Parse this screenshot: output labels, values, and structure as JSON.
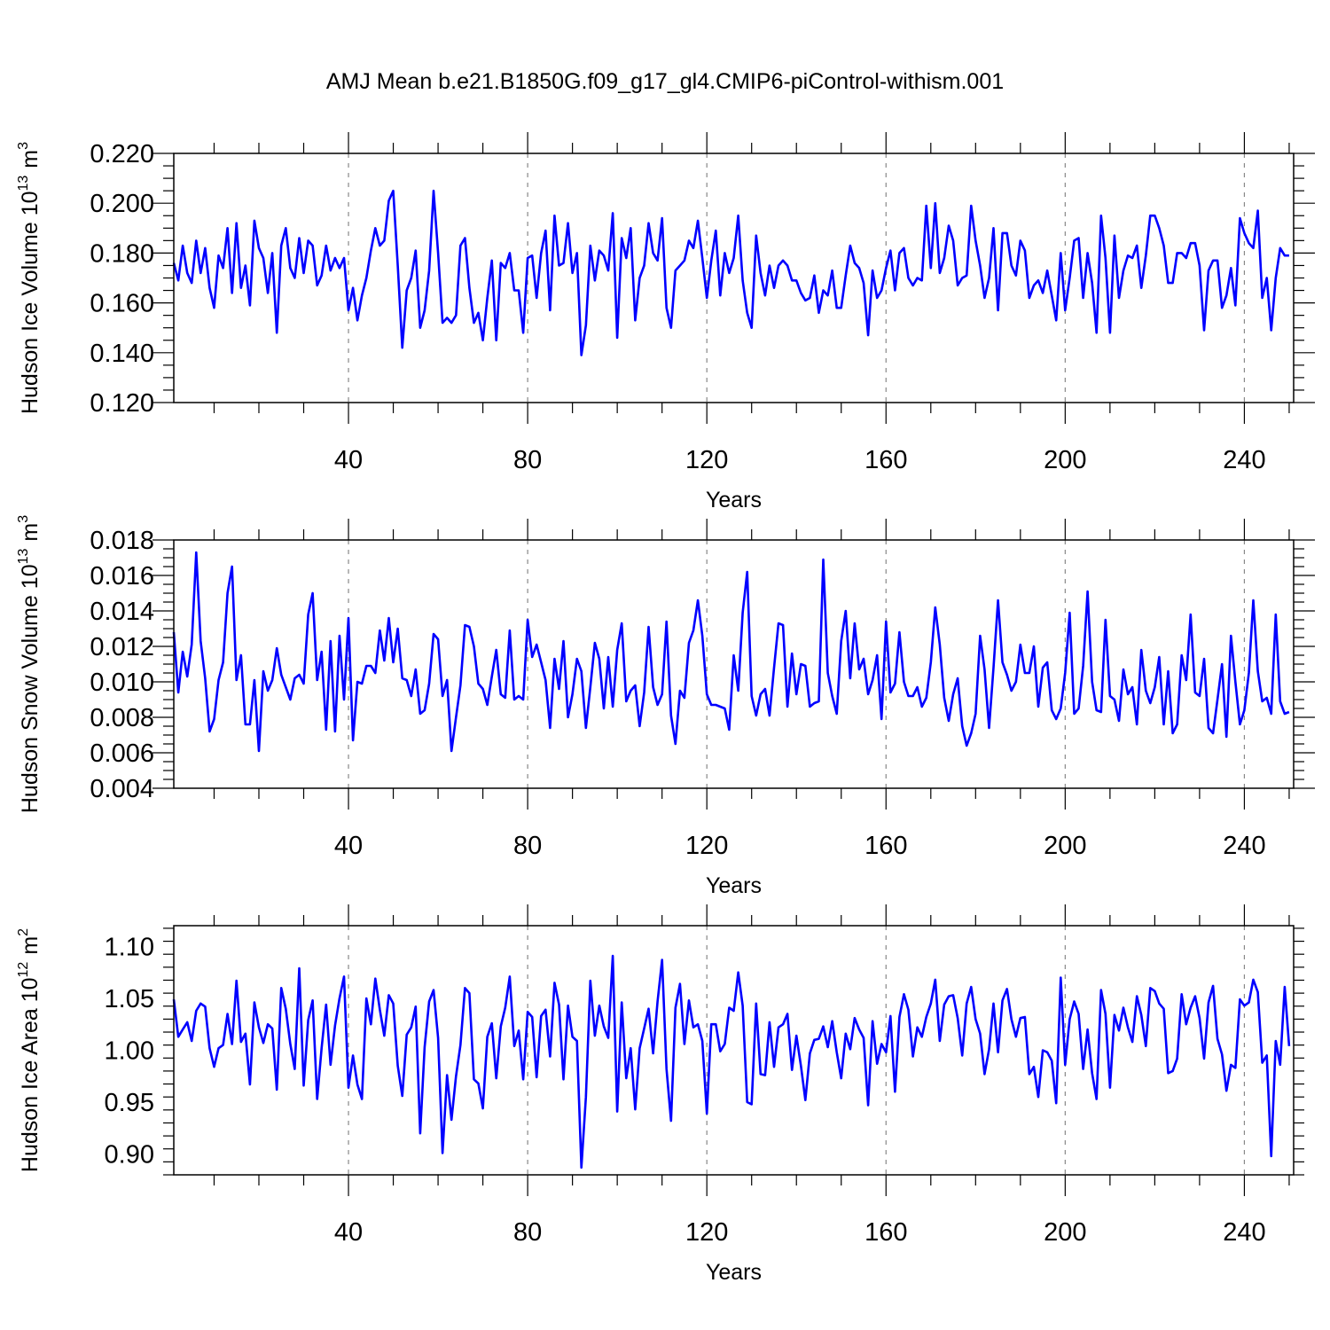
{
  "title": "AMJ Mean b.e21.B1850G.f09_g17_gl4.CMIP6-piControl-withism.001",
  "colors": {
    "series": "#0000ff",
    "axis": "#000000",
    "grid": "#888888"
  },
  "chart_data": [
    {
      "type": "line",
      "name": "ice-volume",
      "ylabel_main": "Hudson Ice Volume 10",
      "ylabel_exp": "13",
      "ylabel_unit": "m",
      "ylabel_unit_exp": "3",
      "xlabel": "Years",
      "xlim": [
        1,
        251
      ],
      "ylim": [
        0.12,
        0.22
      ],
      "yticks": [
        "0.120",
        "0.140",
        "0.160",
        "0.180",
        "0.200",
        "0.220"
      ],
      "ytick_values": [
        0.12,
        0.14,
        0.16,
        0.18,
        0.2,
        0.22
      ],
      "xticks": [
        "40",
        "80",
        "120",
        "160",
        "200",
        "240"
      ],
      "xtick_values": [
        40,
        80,
        120,
        160,
        200,
        240
      ],
      "x_start": 1,
      "values": [
        0.176,
        0.169,
        0.183,
        0.172,
        0.168,
        0.185,
        0.172,
        0.182,
        0.166,
        0.158,
        0.179,
        0.174,
        0.19,
        0.164,
        0.192,
        0.166,
        0.175,
        0.159,
        0.193,
        0.182,
        0.178,
        0.164,
        0.18,
        0.148,
        0.183,
        0.19,
        0.174,
        0.17,
        0.186,
        0.172,
        0.185,
        0.183,
        0.167,
        0.171,
        0.183,
        0.173,
        0.178,
        0.174,
        0.178,
        0.157,
        0.166,
        0.153,
        0.163,
        0.17,
        0.181,
        0.19,
        0.183,
        0.185,
        0.201,
        0.205,
        0.175,
        0.142,
        0.165,
        0.17,
        0.181,
        0.15,
        0.157,
        0.173,
        0.205,
        0.18,
        0.152,
        0.154,
        0.152,
        0.155,
        0.183,
        0.186,
        0.166,
        0.152,
        0.156,
        0.145,
        0.162,
        0.177,
        0.145,
        0.176,
        0.174,
        0.18,
        0.165,
        0.165,
        0.148,
        0.178,
        0.179,
        0.162,
        0.18,
        0.189,
        0.157,
        0.195,
        0.175,
        0.176,
        0.192,
        0.172,
        0.18,
        0.139,
        0.151,
        0.183,
        0.169,
        0.181,
        0.179,
        0.173,
        0.196,
        0.146,
        0.186,
        0.178,
        0.19,
        0.153,
        0.17,
        0.175,
        0.192,
        0.18,
        0.177,
        0.194,
        0.158,
        0.15,
        0.173,
        0.175,
        0.177,
        0.185,
        0.182,
        0.193,
        0.178,
        0.162,
        0.177,
        0.189,
        0.163,
        0.18,
        0.172,
        0.178,
        0.195,
        0.169,
        0.156,
        0.15,
        0.187,
        0.172,
        0.163,
        0.175,
        0.166,
        0.175,
        0.177,
        0.175,
        0.169,
        0.169,
        0.164,
        0.161,
        0.162,
        0.171,
        0.156,
        0.165,
        0.163,
        0.173,
        0.158,
        0.158,
        0.171,
        0.183,
        0.176,
        0.174,
        0.168,
        0.147,
        0.173,
        0.162,
        0.165,
        0.174,
        0.181,
        0.165,
        0.18,
        0.182,
        0.17,
        0.167,
        0.17,
        0.169,
        0.199,
        0.174,
        0.2,
        0.172,
        0.178,
        0.191,
        0.185,
        0.167,
        0.17,
        0.171,
        0.199,
        0.185,
        0.175,
        0.162,
        0.17,
        0.19,
        0.157,
        0.188,
        0.188,
        0.175,
        0.171,
        0.185,
        0.181,
        0.162,
        0.167,
        0.169,
        0.164,
        0.173,
        0.163,
        0.153,
        0.18,
        0.157,
        0.17,
        0.185,
        0.186,
        0.162,
        0.18,
        0.168,
        0.148,
        0.195,
        0.178,
        0.148,
        0.187,
        0.162,
        0.173,
        0.179,
        0.178,
        0.183,
        0.166,
        0.179,
        0.195,
        0.195,
        0.19,
        0.183,
        0.168,
        0.168,
        0.18,
        0.18,
        0.178,
        0.184,
        0.184,
        0.175,
        0.149,
        0.173,
        0.177,
        0.177,
        0.158,
        0.163,
        0.174,
        0.159,
        0.194,
        0.188,
        0.184,
        0.182,
        0.197,
        0.162,
        0.17,
        0.149,
        0.17,
        0.182,
        0.179,
        0.179
      ]
    },
    {
      "type": "line",
      "name": "snow-volume",
      "ylabel_main": "Hudson Snow Volume 10",
      "ylabel_exp": "13",
      "ylabel_unit": "m",
      "ylabel_unit_exp": "3",
      "xlabel": "Years",
      "xlim": [
        1,
        251
      ],
      "ylim": [
        0.004,
        0.018
      ],
      "yticks": [
        "0.004",
        "0.006",
        "0.008",
        "0.010",
        "0.012",
        "0.014",
        "0.016",
        "0.018"
      ],
      "ytick_values": [
        0.004,
        0.006,
        0.008,
        0.01,
        0.012,
        0.014,
        0.016,
        0.018
      ],
      "xticks": [
        "40",
        "80",
        "120",
        "160",
        "200",
        "240"
      ],
      "xtick_values": [
        40,
        80,
        120,
        160,
        200,
        240
      ],
      "x_start": 1,
      "values": [
        0.0128,
        0.0094,
        0.0117,
        0.0103,
        0.0121,
        0.0173,
        0.0123,
        0.0102,
        0.0072,
        0.0079,
        0.0101,
        0.0111,
        0.015,
        0.0165,
        0.0101,
        0.0115,
        0.0076,
        0.0076,
        0.0101,
        0.0061,
        0.0106,
        0.0095,
        0.0101,
        0.0119,
        0.0104,
        0.0097,
        0.009,
        0.0102,
        0.0104,
        0.0099,
        0.0138,
        0.015,
        0.0101,
        0.0117,
        0.0073,
        0.0123,
        0.0072,
        0.0126,
        0.009,
        0.0136,
        0.0067,
        0.01,
        0.0099,
        0.0109,
        0.0109,
        0.0105,
        0.0129,
        0.0112,
        0.0136,
        0.0111,
        0.013,
        0.0102,
        0.0101,
        0.0092,
        0.0107,
        0.0082,
        0.0084,
        0.0099,
        0.0127,
        0.0124,
        0.0092,
        0.0101,
        0.0061,
        0.008,
        0.0098,
        0.0132,
        0.0131,
        0.012,
        0.0099,
        0.0096,
        0.0087,
        0.0103,
        0.0118,
        0.0093,
        0.0091,
        0.0129,
        0.009,
        0.0092,
        0.009,
        0.0135,
        0.0114,
        0.0121,
        0.0111,
        0.0101,
        0.0074,
        0.0113,
        0.0096,
        0.0123,
        0.008,
        0.0093,
        0.0113,
        0.0106,
        0.0074,
        0.0097,
        0.0122,
        0.0113,
        0.0085,
        0.0114,
        0.0086,
        0.0118,
        0.0133,
        0.0089,
        0.0095,
        0.0098,
        0.0075,
        0.0094,
        0.0131,
        0.0097,
        0.0087,
        0.0093,
        0.0134,
        0.0081,
        0.0065,
        0.0095,
        0.0091,
        0.0122,
        0.0129,
        0.0146,
        0.0126,
        0.0093,
        0.0087,
        0.0087,
        0.0086,
        0.0085,
        0.0073,
        0.0115,
        0.0095,
        0.0139,
        0.0162,
        0.0092,
        0.0081,
        0.0093,
        0.0096,
        0.0081,
        0.0108,
        0.0133,
        0.0132,
        0.0086,
        0.0116,
        0.0093,
        0.011,
        0.0109,
        0.0086,
        0.0088,
        0.0089,
        0.0169,
        0.0105,
        0.0092,
        0.0082,
        0.0123,
        0.014,
        0.0102,
        0.0133,
        0.0107,
        0.0113,
        0.0093,
        0.0101,
        0.0115,
        0.0079,
        0.0134,
        0.0094,
        0.0099,
        0.0128,
        0.01,
        0.0092,
        0.0092,
        0.0097,
        0.0086,
        0.0091,
        0.0111,
        0.0142,
        0.0121,
        0.0091,
        0.0078,
        0.0093,
        0.0102,
        0.0075,
        0.0064,
        0.0071,
        0.0082,
        0.0126,
        0.0107,
        0.0074,
        0.0108,
        0.0146,
        0.0111,
        0.0104,
        0.0095,
        0.01,
        0.0121,
        0.0105,
        0.0105,
        0.012,
        0.0086,
        0.0108,
        0.0111,
        0.0084,
        0.0079,
        0.0085,
        0.0105,
        0.0139,
        0.0082,
        0.0085,
        0.0109,
        0.0151,
        0.01,
        0.0084,
        0.0083,
        0.0135,
        0.0092,
        0.009,
        0.0078,
        0.0107,
        0.0093,
        0.0097,
        0.0076,
        0.0118,
        0.0095,
        0.0088,
        0.0097,
        0.0114,
        0.0076,
        0.0106,
        0.0071,
        0.0076,
        0.0115,
        0.0101,
        0.0138,
        0.0094,
        0.0092,
        0.0113,
        0.0074,
        0.0071,
        0.009,
        0.011,
        0.0069,
        0.0126,
        0.01,
        0.0076,
        0.0084,
        0.0105,
        0.0146,
        0.0106,
        0.0089,
        0.0091,
        0.0082,
        0.0138,
        0.0089,
        0.0082,
        0.0083
      ]
    },
    {
      "type": "line",
      "name": "ice-area",
      "ylabel_main": "Hudson Ice Area 10",
      "ylabel_exp": "12",
      "ylabel_unit": "m",
      "ylabel_unit_exp": "2",
      "xlabel": "Years",
      "xlim": [
        1,
        251
      ],
      "ylim": [
        0.88,
        1.12
      ],
      "yticks": [
        "0.90",
        "0.95",
        "1.00",
        "1.05",
        "1.10"
      ],
      "ytick_values": [
        0.9,
        0.95,
        1.0,
        1.05,
        1.1
      ],
      "xticks": [
        "40",
        "80",
        "120",
        "160",
        "200",
        "240"
      ],
      "xtick_values": [
        40,
        80,
        120,
        160,
        200,
        240
      ],
      "x_start": 1,
      "values": [
        1.049,
        1.013,
        1.02,
        1.027,
        1.009,
        1.038,
        1.045,
        1.042,
        1.002,
        0.984,
        1.002,
        1.005,
        1.035,
        1.006,
        1.067,
        1.008,
        1.016,
        0.967,
        1.046,
        1.022,
        1.007,
        1.025,
        1.021,
        0.962,
        1.06,
        1.04,
        1.006,
        0.982,
        1.079,
        0.966,
        1.029,
        1.048,
        0.953,
        1.002,
        1.044,
        0.986,
        1.024,
        1.05,
        1.071,
        0.964,
        0.995,
        0.967,
        0.953,
        1.05,
        1.025,
        1.069,
        1.039,
        1.014,
        1.053,
        1.045,
        0.985,
        0.956,
        1.015,
        1.022,
        1.042,
        0.92,
        1.003,
        1.047,
        1.058,
        1.012,
        0.901,
        0.976,
        0.933,
        0.975,
        1.005,
        1.06,
        1.055,
        0.972,
        0.968,
        0.944,
        1.013,
        1.026,
        0.973,
        1.023,
        1.041,
        1.071,
        1.004,
        1.019,
        0.972,
        1.037,
        1.032,
        0.974,
        1.033,
        1.039,
        0.994,
        1.065,
        1.044,
        0.972,
        1.043,
        1.013,
        1.009,
        0.887,
        0.955,
        1.067,
        1.014,
        1.043,
        1.023,
        1.012,
        1.091,
        0.941,
        1.046,
        0.973,
        1.002,
        0.943,
        1.002,
        1.021,
        1.04,
        0.997,
        1.047,
        1.087,
        0.982,
        0.932,
        1.041,
        1.064,
        1.006,
        1.048,
        1.022,
        1.025,
        1.009,
        0.939,
        1.025,
        1.025,
        0.999,
        1.006,
        1.041,
        1.038,
        1.075,
        1.043,
        0.95,
        0.948,
        1.045,
        0.977,
        0.976,
        1.027,
        0.984,
        1.022,
        1.025,
        1.035,
        0.981,
        1.014,
        0.985,
        0.952,
        0.997,
        1.01,
        1.011,
        1.023,
        1.003,
        1.028,
        0.998,
        0.973,
        1.016,
        1.001,
        1.031,
        1.02,
        1.012,
        0.947,
        1.028,
        0.987,
        1.006,
        0.998,
        1.033,
        0.96,
        1.032,
        1.054,
        1.039,
        0.994,
        1.022,
        1.013,
        1.032,
        1.045,
        1.068,
        1.009,
        1.044,
        1.052,
        1.053,
        1.031,
        0.995,
        1.045,
        1.061,
        1.03,
        1.016,
        0.977,
        1.001,
        1.045,
        0.998,
        1.048,
        1.059,
        1.03,
        1.013,
        1.031,
        1.032,
        0.977,
        0.984,
        0.955,
        1.0,
        0.998,
        0.99,
        0.949,
        1.07,
        0.986,
        1.03,
        1.047,
        1.035,
        0.982,
        1.02,
        0.978,
        0.953,
        1.058,
        1.035,
        0.964,
        1.034,
        1.019,
        1.041,
        1.022,
        1.008,
        1.052,
        1.034,
        1.004,
        1.06,
        1.057,
        1.045,
        1.04,
        0.978,
        0.98,
        0.992,
        1.054,
        1.025,
        1.041,
        1.052,
        1.031,
        0.992,
        1.046,
        1.062,
        1.011,
        0.996,
        0.961,
        0.986,
        0.983,
        1.049,
        1.043,
        1.046,
        1.068,
        1.056,
        0.988,
        0.995,
        0.898,
        1.009,
        0.986,
        1.061,
        1.004
      ]
    }
  ]
}
